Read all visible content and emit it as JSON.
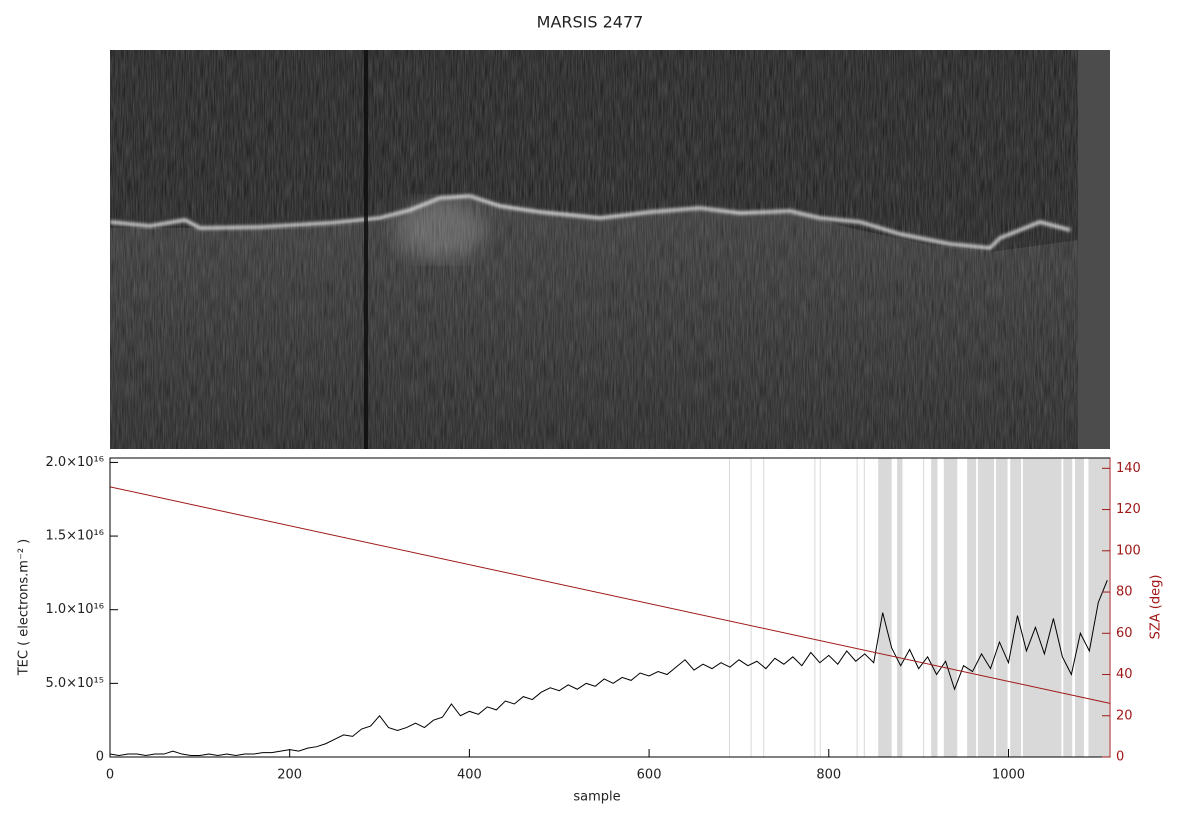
{
  "chart_data": {
    "type": "line",
    "title": "MARSIS 2477",
    "x_label": "sample",
    "y_label": "TEC ( electrons.m⁻² )",
    "y2_label": "SZA (deg)",
    "xlim": [
      0,
      1113
    ],
    "xticks": [
      0,
      200,
      400,
      600,
      800,
      1000
    ],
    "ylim": [
      0,
      2.03e+16
    ],
    "yticks": [
      0,
      {
        "value": 5000000000000000.0,
        "label": "5.0×10¹⁵"
      },
      {
        "value": 1e+16,
        "label": "1.0×10¹⁶"
      },
      {
        "value": 1.5e+16,
        "label": "1.5×10¹⁶"
      },
      {
        "value": 2e+16,
        "label": "2.0×10¹⁶"
      }
    ],
    "y2lim": [
      0,
      145
    ],
    "y2ticks": [
      0,
      20,
      40,
      60,
      80,
      100,
      120,
      140
    ],
    "y2_color": "#a01818",
    "span_color": "#d9d9d9",
    "spans": [
      [
        689,
        690
      ],
      [
        713,
        714
      ],
      [
        727,
        728
      ],
      [
        784,
        785
      ],
      [
        790,
        791
      ],
      [
        831,
        832
      ],
      [
        839,
        840
      ],
      [
        855,
        870
      ],
      [
        876,
        882
      ],
      [
        905,
        906
      ],
      [
        914,
        921
      ],
      [
        928,
        943
      ],
      [
        954,
        964
      ],
      [
        966,
        984
      ],
      [
        986,
        999
      ],
      [
        1002,
        1014
      ],
      [
        1016,
        1059
      ],
      [
        1061,
        1071
      ],
      [
        1074,
        1084
      ],
      [
        1089,
        1112
      ]
    ],
    "series": [
      {
        "color": "#000000",
        "x": [
          0,
          10,
          20,
          30,
          40,
          50,
          60,
          70,
          80,
          90,
          100,
          110,
          120,
          130,
          140,
          150,
          160,
          170,
          180,
          190,
          200,
          210,
          220,
          230,
          240,
          250,
          260,
          270,
          280,
          290,
          300,
          310,
          320,
          330,
          340,
          350,
          360,
          370,
          380,
          390,
          400,
          410,
          420,
          430,
          440,
          450,
          460,
          470,
          480,
          490,
          500,
          510,
          520,
          530,
          540,
          550,
          560,
          570,
          580,
          590,
          600,
          610,
          620,
          630,
          640,
          650,
          660,
          670,
          680,
          690,
          700,
          710,
          720,
          730,
          740,
          750,
          760,
          770,
          780,
          790,
          800,
          810,
          820,
          830,
          840,
          850,
          860,
          870,
          880,
          890,
          900,
          910,
          920,
          930,
          940,
          950,
          960,
          970,
          980,
          990,
          1000,
          1010,
          1020,
          1030,
          1040,
          1050,
          1060,
          1070,
          1080,
          1090,
          1100,
          1110
        ],
        "values": [
          200000000000000.0,
          100000000000000.0,
          200000000000000.0,
          200000000000000.0,
          100000000000000.0,
          200000000000000.0,
          200000000000000.0,
          400000000000000.0,
          200000000000000.0,
          100000000000000.0,
          100000000000000.0,
          200000000000000.0,
          100000000000000.0,
          200000000000000.0,
          100000000000000.0,
          200000000000000.0,
          200000000000000.0,
          300000000000000.0,
          300000000000000.0,
          400000000000000.0,
          500000000000000.0,
          400000000000000.0,
          600000000000000.0,
          700000000000000.0,
          900000000000000.0,
          1200000000000000.0,
          1500000000000000.0,
          1400000000000000.0,
          1900000000000000.0,
          2100000000000000.0,
          2800000000000000.0,
          2000000000000000.0,
          1800000000000000.0,
          2000000000000000.0,
          2300000000000000.0,
          2000000000000000.0,
          2500000000000000.0,
          2700000000000000.0,
          3600000000000000.0,
          2800000000000000.0,
          3100000000000000.0,
          2900000000000000.0,
          3400000000000000.0,
          3200000000000000.0,
          3800000000000000.0,
          3600000000000000.0,
          4100000000000000.0,
          3900000000000000.0,
          4400000000000000.0,
          4700000000000000.0,
          4500000000000000.0,
          4900000000000000.0,
          4600000000000000.0,
          5000000000000000.0,
          4800000000000000.0,
          5300000000000000.0,
          5000000000000000.0,
          5400000000000000.0,
          5200000000000000.0,
          5700000000000000.0,
          5500000000000000.0,
          5800000000000000.0,
          5600000000000000.0,
          6100000000000000.0,
          6600000000000000.0,
          5900000000000000.0,
          6300000000000000.0,
          6000000000000000.0,
          6400000000000000.0,
          6100000000000000.0,
          6600000000000000.0,
          6200000000000000.0,
          6500000000000000.0,
          6000000000000000.0,
          6700000000000000.0,
          6300000000000000.0,
          6800000000000000.0,
          6200000000000000.0,
          7100000000000000.0,
          6400000000000000.0,
          6900000000000000.0,
          6300000000000000.0,
          7200000000000000.0,
          6500000000000000.0,
          7000000000000000.0,
          6400000000000000.0,
          9800000000000000.0,
          7400000000000000.0,
          6200000000000000.0,
          7300000000000000.0,
          6000000000000000.0,
          6800000000000000.0,
          5600000000000000.0,
          6500000000000000.0,
          4600000000000000.0,
          6200000000000000.0,
          5800000000000000.0,
          7000000000000000.0,
          6000000000000000.0,
          7800000000000000.0,
          6400000000000000.0,
          9600000000000000.0,
          7200000000000000.0,
          8800000000000000.0,
          7000000000000000.0,
          9400000000000000.0,
          6800000000000000.0,
          5600000000000000.0,
          8400000000000000.0,
          7200000000000000.0,
          1.05e+16,
          1.2e+16
        ]
      },
      {
        "color": "#a01818",
        "axis": "y2",
        "x": [
          0,
          1113
        ],
        "values": [
          131,
          26
        ]
      }
    ]
  }
}
